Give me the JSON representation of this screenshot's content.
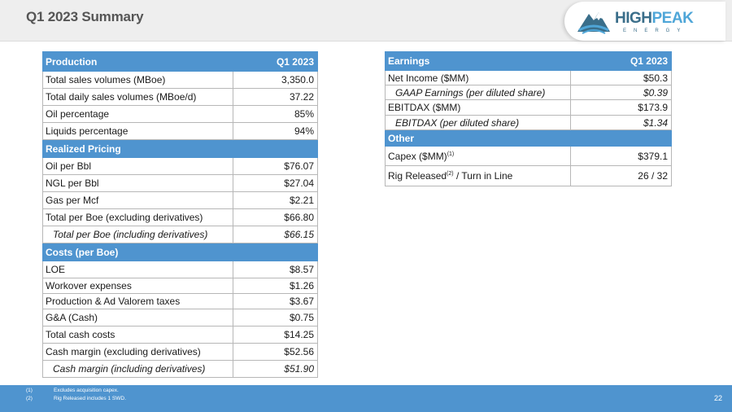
{
  "header": {
    "title": "Q1 2023 Summary",
    "logo": {
      "high": "HIGH",
      "peak": "PEAK",
      "sub": "ENERGY"
    }
  },
  "left_table": {
    "rows": [
      {
        "type": "header",
        "label": "Production",
        "value": "Q1 2023"
      },
      {
        "type": "row",
        "label": "Total sales volumes (MBoe)",
        "value": "3,350.0"
      },
      {
        "type": "row",
        "label": "Total daily sales volumes (MBoe/d)",
        "value": "37.22"
      },
      {
        "type": "row",
        "label": "Oil percentage",
        "value": "85%"
      },
      {
        "type": "row",
        "label": "Liquids percentage",
        "value": "94%"
      },
      {
        "type": "header",
        "label": "Realized Pricing",
        "value": ""
      },
      {
        "type": "row",
        "label": "Oil per Bbl",
        "value": "$76.07"
      },
      {
        "type": "row",
        "label": "NGL per Bbl",
        "value": "$27.04"
      },
      {
        "type": "row",
        "label": "Gas per Mcf",
        "value": "$2.21"
      },
      {
        "type": "row",
        "label": "Total per Boe (excluding derivatives)",
        "value": "$66.80"
      },
      {
        "type": "sub",
        "label": "Total per Boe (including derivatives)",
        "value": "$66.15"
      },
      {
        "type": "header",
        "label": "Costs (per Boe)",
        "value": ""
      },
      {
        "type": "row",
        "label": "LOE",
        "value": "$8.57"
      },
      {
        "type": "row",
        "label": "Workover expenses",
        "value": "$1.26"
      },
      {
        "type": "row",
        "label": "Production & Ad Valorem taxes",
        "value": "$3.67"
      },
      {
        "type": "row",
        "label": "G&A (Cash)",
        "value": "$0.75"
      },
      {
        "type": "row",
        "label": "Total cash costs",
        "value": "$14.25"
      },
      {
        "type": "row",
        "label": "Cash margin (excluding derivatives)",
        "value": "$52.56"
      },
      {
        "type": "sub",
        "label": "Cash margin (including derivatives)",
        "value": "$51.90"
      }
    ]
  },
  "right_table": {
    "rows": [
      {
        "type": "header",
        "label": "Earnings",
        "value": "Q1 2023"
      },
      {
        "type": "row",
        "label": "Net Income ($MM)",
        "value": "$50.3"
      },
      {
        "type": "sub",
        "label": "GAAP Earnings (per diluted share)",
        "value": "$0.39"
      },
      {
        "type": "row",
        "label": "EBITDAX ($MM)",
        "value": "$173.9"
      },
      {
        "type": "sub",
        "label": "EBITDAX (per diluted share)",
        "value": "$1.34"
      },
      {
        "type": "header",
        "label": "Other",
        "value": ""
      },
      {
        "type": "row",
        "label": "Capex ($MM)",
        "label_sup": "(1)",
        "value": "$379.1"
      },
      {
        "type": "row",
        "label": "Rig Released",
        "label_sup": "(2)",
        "label_after": " / Turn in Line",
        "value": "26 / 32"
      }
    ]
  },
  "footnotes": [
    {
      "num": "(1)",
      "text": "Excludes acquisition capex."
    },
    {
      "num": "(2)",
      "text": "Rig Released includes 1 SWD."
    }
  ],
  "page_number": "22",
  "colors": {
    "header_blue": "#4f94cf",
    "logo_dark": "#3a6e8a",
    "logo_light": "#4fa6d8"
  }
}
